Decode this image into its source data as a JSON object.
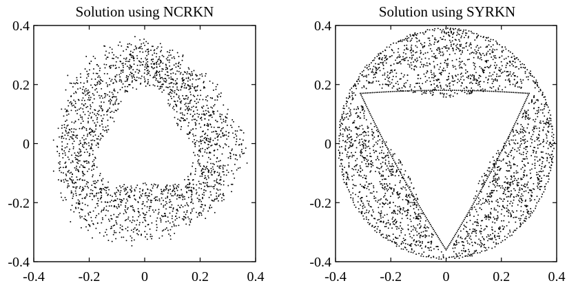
{
  "chart_data": [
    {
      "type": "scatter",
      "title": "Solution using NCRKN",
      "xlim": [
        -0.4,
        0.4
      ],
      "ylim": [
        -0.4,
        0.4
      ],
      "xticks": [
        "-0.4",
        "-0.2",
        "0",
        "0.2",
        "0.4"
      ],
      "yticks": [
        "0.4",
        "0.2",
        "0",
        "-0.2",
        "-0.4"
      ],
      "grid": false,
      "point_color": "#000000",
      "series": [
        {
          "pattern": "noisy annulus",
          "point_count": 2200,
          "inner_radius_approx": 0.16,
          "outer_radius_approx": 0.36,
          "inner_boundary_shape": "rounded triangle",
          "x_range": [
            -0.37,
            0.36
          ],
          "y_range": [
            -0.37,
            0.39
          ]
        }
      ]
    },
    {
      "type": "scatter",
      "title": "Solution using SYRKN",
      "xlim": [
        -0.4,
        0.4
      ],
      "ylim": [
        -0.4,
        0.4
      ],
      "xticks": [
        "-0.4",
        "-0.2",
        "0",
        "0.2",
        "0.4"
      ],
      "yticks": [
        "0.4",
        "0.2",
        "0",
        "-0.2",
        "-0.4"
      ],
      "grid": false,
      "point_color": "#000000",
      "series": [
        {
          "pattern": "ring of three lobes around an empty curved triangle",
          "point_count": 2600,
          "outer_radius_approx": 0.39,
          "inner_triangle_vertices": [
            [
              -0.31,
              0.17
            ],
            [
              0.3,
              0.17
            ],
            [
              0.0,
              -0.36
            ]
          ],
          "x_range": [
            -0.39,
            0.39
          ],
          "y_range": [
            -0.39,
            0.39
          ]
        }
      ]
    }
  ]
}
